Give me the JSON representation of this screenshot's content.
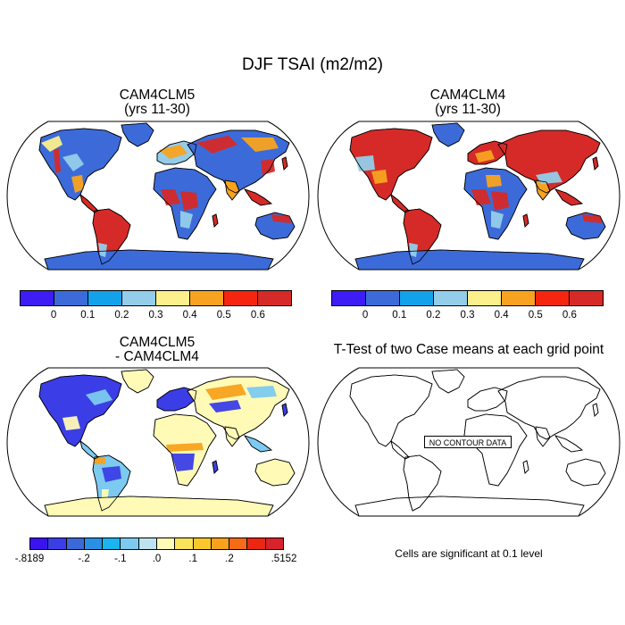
{
  "title": "DJF TSAI (m2/m2)",
  "panels": {
    "top_left": {
      "title": "CAM4CLM5",
      "subtitle": "(yrs 11-30)"
    },
    "top_right": {
      "title": "CAM4CLM4",
      "subtitle": "(yrs 11-30)"
    },
    "bottom_left": {
      "title": "CAM4CLM5",
      "subtitle": "- CAM4CLM4"
    },
    "bottom_right": {
      "title": "T-Test of two Case means at each grid point",
      "message": "NO CONTOUR DATA",
      "note": "Cells are significant at 0.1 level"
    }
  },
  "colorbars": {
    "abs": {
      "colors": [
        "#3d1cf5",
        "#3c6bd9",
        "#13a2ea",
        "#94cdea",
        "#fbf08c",
        "#f8a320",
        "#f6250f",
        "#d52a27"
      ],
      "ticks": [
        "0",
        "0.1",
        "0.2",
        "0.3",
        "0.4",
        "0.5",
        "0.6"
      ]
    },
    "diff": {
      "colors": [
        "#3a13ee",
        "#3b3ee6",
        "#3b69d8",
        "#2990e4",
        "#1ab4ef",
        "#7ccaf0",
        "#bfe2ef",
        "#fffab6",
        "#f9e35a",
        "#f9c72a",
        "#f8a21c",
        "#f56b16",
        "#ec2610",
        "#d9232a"
      ],
      "ticks": [
        "-.8189",
        "-.2",
        "-.1",
        ".0",
        ".1",
        ".2",
        ".5152"
      ]
    }
  },
  "map_colors": {
    "ocean": "#ffffff",
    "coast": "#000000",
    "low": "#3c6bd9",
    "mid": "#94cdea",
    "high": "#d52a27",
    "warm": "#f8a320",
    "yellow": "#fbf08c",
    "diff_low": "#3b3ee6",
    "diff_neutral": "#fffab6",
    "diff_orange": "#f8a21c",
    "diff_light": "#7ccaf0"
  }
}
